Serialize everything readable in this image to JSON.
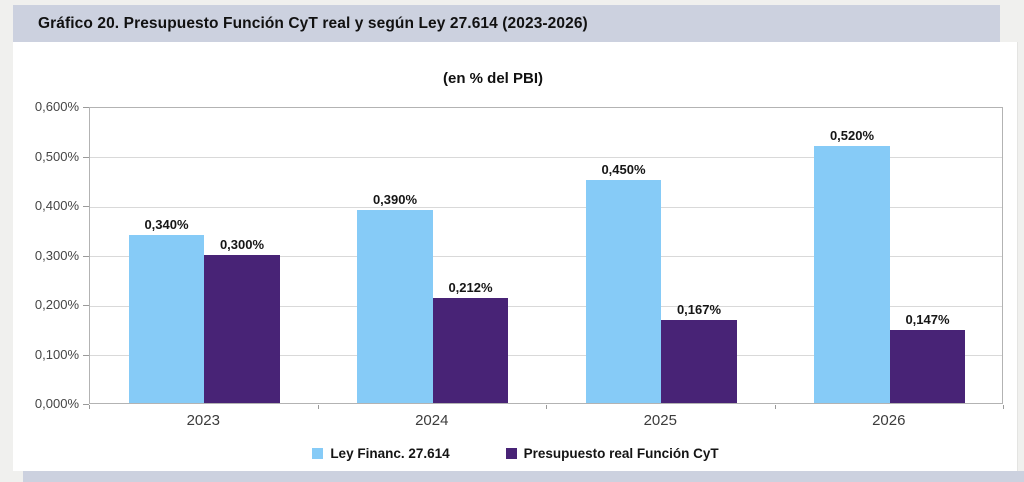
{
  "header": {
    "title": "Gráfico 20. Presupuesto Función CyT real y según Ley 27.614 (2023-2026)"
  },
  "colors": {
    "band": "#ccd1df",
    "page_background": "#f0f0ee",
    "series_blue": "#86cbf7",
    "series_purple": "#482376",
    "gridline": "#d9d9d9"
  },
  "chart_data": {
    "type": "bar",
    "title": "(en % del PBI)",
    "categories": [
      "2023",
      "2024",
      "2025",
      "2026"
    ],
    "series": [
      {
        "name": "Ley Financ. 27.614",
        "color": "#86cbf7",
        "values": [
          0.34,
          0.39,
          0.45,
          0.52
        ],
        "labels": [
          "0,340%",
          "0,390%",
          "0,450%",
          "0,520%"
        ]
      },
      {
        "name": "Presupuesto real Función CyT",
        "color": "#482376",
        "values": [
          0.3,
          0.212,
          0.167,
          0.147
        ],
        "labels": [
          "0,300%",
          "0,212%",
          "0,167%",
          "0,147%"
        ]
      }
    ],
    "ylim": [
      0,
      0.6
    ],
    "ytick_labels": [
      "0,000%",
      "0,100%",
      "0,200%",
      "0,300%",
      "0,400%",
      "0,500%",
      "0,600%"
    ],
    "grid": true,
    "legend_position": "bottom"
  }
}
